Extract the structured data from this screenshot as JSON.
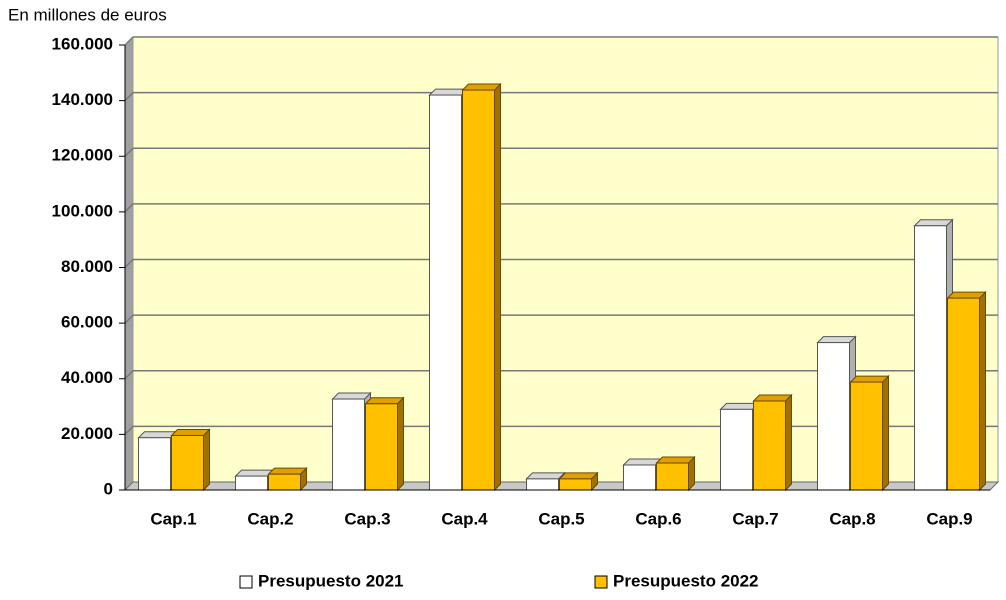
{
  "chart_data": {
    "type": "bar3d",
    "subtitle": "En millones de euros",
    "categories": [
      "Cap.1",
      "Cap.2",
      "Cap.3",
      "Cap.4",
      "Cap.5",
      "Cap.6",
      "Cap.7",
      "Cap.8",
      "Cap.9"
    ],
    "series": [
      {
        "name": "Presupuesto 2021",
        "color": "#ffffff",
        "values": [
          18800,
          5000,
          32700,
          142000,
          4000,
          9000,
          29000,
          53000,
          95000
        ]
      },
      {
        "name": "Presupuesto 2022",
        "color": "#ffc000",
        "values": [
          19600,
          5700,
          31000,
          143800,
          4000,
          9700,
          32000,
          38800,
          69000
        ]
      }
    ],
    "ylim": [
      0,
      160000
    ],
    "yticks": [
      0,
      {
        "value": 20000,
        "label": "20.000"
      },
      {
        "value": 40000,
        "label": "40.000"
      },
      {
        "value": 60000,
        "label": "60.000"
      },
      {
        "value": 80000,
        "label": "80.000"
      },
      {
        "value": 100000,
        "label": "100.000"
      },
      {
        "value": 120000,
        "label": "120.000"
      },
      {
        "value": 140000,
        "label": "140.000"
      },
      {
        "value": 160000,
        "label": "160.000"
      }
    ],
    "grid": true,
    "legend": "bottom"
  }
}
